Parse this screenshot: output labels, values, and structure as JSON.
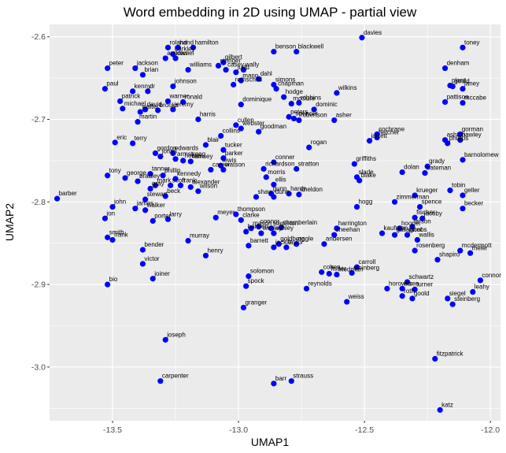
{
  "chart_data": {
    "type": "scatter",
    "title": "Word embedding in 2D using UMAP - partial view",
    "xlabel": "UMAP1",
    "ylabel": "UMAP2",
    "xlim": [
      -13.75,
      -11.96
    ],
    "ylim": [
      -3.065,
      -2.585
    ],
    "x_ticks": [
      -13.5,
      -13.0,
      -12.5,
      -12.0
    ],
    "x_tick_labels": [
      "-13.5",
      "-13.0",
      "-12.5",
      "-12.0"
    ],
    "y_ticks": [
      -2.6,
      -2.7,
      -2.8,
      -2.9,
      -3.0
    ],
    "y_tick_labels": [
      "-2.6",
      "-2.7",
      "-2.8",
      "-2.9",
      "-3.0"
    ],
    "grid": true,
    "point_color": "#0000ff",
    "panel_color": "#ebebeb",
    "grid_color": "#ffffff",
    "points": [
      {
        "label": "davies",
        "x": -12.51,
        "y": -2.601
      },
      {
        "label": "toney",
        "x": -12.11,
        "y": -2.613
      },
      {
        "label": "roland",
        "x": -13.28,
        "y": -2.613
      },
      {
        "label": "hand",
        "x": -13.24,
        "y": -2.613
      },
      {
        "label": "barkley",
        "x": -13.26,
        "y": -2.621
      },
      {
        "label": "andrew",
        "x": -13.29,
        "y": -2.626
      },
      {
        "label": "daniel",
        "x": -13.25,
        "y": -2.626
      },
      {
        "label": "hamilton",
        "x": -13.18,
        "y": -2.613
      },
      {
        "label": "benson",
        "x": -12.86,
        "y": -2.618
      },
      {
        "label": "blackwell",
        "x": -12.77,
        "y": -2.618
      },
      {
        "label": "gilbert",
        "x": -13.06,
        "y": -2.631
      },
      {
        "label": "stringer",
        "x": -13.08,
        "y": -2.635
      },
      {
        "label": "wally",
        "x": -12.98,
        "y": -2.64
      },
      {
        "label": "casey",
        "x": -13.05,
        "y": -2.64
      },
      {
        "label": "judd",
        "x": -13.01,
        "y": -2.643
      },
      {
        "label": "peter",
        "x": -13.52,
        "y": -2.638
      },
      {
        "label": "jackson",
        "x": -13.41,
        "y": -2.638
      },
      {
        "label": "brian",
        "x": -13.38,
        "y": -2.646
      },
      {
        "label": "williams",
        "x": -13.2,
        "y": -2.64
      },
      {
        "label": "denham",
        "x": -12.18,
        "y": -2.638
      },
      {
        "label": "paul",
        "x": -13.53,
        "y": -2.663
      },
      {
        "label": "johnson",
        "x": -13.26,
        "y": -2.66
      },
      {
        "label": "mann",
        "x": -12.99,
        "y": -2.653
      },
      {
        "label": "dahl",
        "x": -12.92,
        "y": -2.651
      },
      {
        "label": "simons",
        "x": -12.86,
        "y": -2.658
      },
      {
        "label": "chapman",
        "x": -12.85,
        "y": -2.663
      },
      {
        "label": "rothschild",
        "x": -13.02,
        "y": -2.658
      },
      {
        "label": "plant",
        "x": -12.16,
        "y": -2.659
      },
      {
        "label": "gould",
        "x": -12.15,
        "y": -2.66
      },
      {
        "label": "janey",
        "x": -12.11,
        "y": -2.663
      },
      {
        "label": "kenny",
        "x": -13.42,
        "y": -2.666
      },
      {
        "label": "dr",
        "x": -13.36,
        "y": -2.666
      },
      {
        "label": "wilkins",
        "x": -12.61,
        "y": -2.668
      },
      {
        "label": "hodge",
        "x": -12.82,
        "y": -2.673
      },
      {
        "label": "patrick",
        "x": -13.47,
        "y": -2.678
      },
      {
        "label": "warner",
        "x": -13.28,
        "y": -2.678
      },
      {
        "label": "ronald",
        "x": -13.22,
        "y": -2.679
      },
      {
        "label": "dominique",
        "x": -12.99,
        "y": -2.682
      },
      {
        "label": "mcclure",
        "x": -12.79,
        "y": -2.681
      },
      {
        "label": "robbins",
        "x": -12.76,
        "y": -2.68
      },
      {
        "label": "pattison",
        "x": -12.18,
        "y": -2.679
      },
      {
        "label": "mccabe",
        "x": -12.11,
        "y": -2.68
      },
      {
        "label": "michael",
        "x": -13.46,
        "y": -2.687
      },
      {
        "label": "david",
        "x": -13.37,
        "y": -2.688
      },
      {
        "label": "brooks",
        "x": -13.32,
        "y": -2.689
      },
      {
        "label": "jeremy",
        "x": -13.26,
        "y": -2.688
      },
      {
        "label": "dominic",
        "x": -12.7,
        "y": -2.688
      },
      {
        "label": "walter",
        "x": -13.39,
        "y": -2.691
      },
      {
        "label": "peters",
        "x": -12.8,
        "y": -2.697
      },
      {
        "label": "spencer",
        "x": -12.78,
        "y": -2.699
      },
      {
        "label": "robertson",
        "x": -12.76,
        "y": -2.701
      },
      {
        "label": "asher",
        "x": -12.62,
        "y": -2.701
      },
      {
        "label": "harris",
        "x": -13.16,
        "y": -2.7
      },
      {
        "label": "martin",
        "x": -13.4,
        "y": -2.703
      },
      {
        "label": "cullen",
        "x": -13.01,
        "y": -2.707
      },
      {
        "label": "webster",
        "x": -12.99,
        "y": -2.711
      },
      {
        "label": "goodman",
        "x": -12.92,
        "y": -2.715
      },
      {
        "label": "collins",
        "x": -13.07,
        "y": -2.72
      },
      {
        "label": "cochrane",
        "x": -12.45,
        "y": -2.718
      },
      {
        "label": "fletcher",
        "x": -12.45,
        "y": -2.722
      },
      {
        "label": "jarrett",
        "x": -12.48,
        "y": -2.726
      },
      {
        "label": "gorman",
        "x": -12.12,
        "y": -2.718
      },
      {
        "label": "ashton",
        "x": -12.18,
        "y": -2.725
      },
      {
        "label": "hawley",
        "x": -12.12,
        "y": -2.725
      },
      {
        "label": "phillips",
        "x": -12.17,
        "y": -2.729
      },
      {
        "label": "eric",
        "x": -13.49,
        "y": -2.728
      },
      {
        "label": "terry",
        "x": -13.42,
        "y": -2.729
      },
      {
        "label": "blair",
        "x": -13.13,
        "y": -2.731
      },
      {
        "label": "tucker",
        "x": -13.06,
        "y": -2.737
      },
      {
        "label": "rogan",
        "x": -12.72,
        "y": -2.734
      },
      {
        "label": "gordon",
        "x": -13.33,
        "y": -2.741
      },
      {
        "label": "edwards",
        "x": -13.26,
        "y": -2.741
      },
      {
        "label": "jones",
        "x": -13.31,
        "y": -2.745
      },
      {
        "label": "armstrong",
        "x": -13.25,
        "y": -2.748
      },
      {
        "label": "hobbs",
        "x": -13.22,
        "y": -2.75
      },
      {
        "label": "ramsey",
        "x": -13.19,
        "y": -2.751
      },
      {
        "label": "parker",
        "x": -13.06,
        "y": -2.747
      },
      {
        "label": "barnolomew",
        "x": -12.11,
        "y": -2.749
      },
      {
        "label": "lewis",
        "x": -13.07,
        "y": -2.756
      },
      {
        "label": "conner",
        "x": -12.86,
        "y": -2.752
      },
      {
        "label": "griffiths",
        "x": -12.54,
        "y": -2.754
      },
      {
        "label": "grady",
        "x": -12.25,
        "y": -2.757
      },
      {
        "label": "carver",
        "x": -13.11,
        "y": -2.761
      },
      {
        "label": "watson",
        "x": -13.06,
        "y": -2.761
      },
      {
        "label": "richardson",
        "x": -12.9,
        "y": -2.76
      },
      {
        "label": "stratton",
        "x": -12.77,
        "y": -2.76
      },
      {
        "label": "dolan",
        "x": -12.35,
        "y": -2.764
      },
      {
        "label": "bateman",
        "x": -12.26,
        "y": -2.765
      },
      {
        "label": "tony",
        "x": -13.52,
        "y": -2.768
      },
      {
        "label": "tanner",
        "x": -13.35,
        "y": -2.766
      },
      {
        "label": "phillip",
        "x": -13.3,
        "y": -2.768
      },
      {
        "label": "george",
        "x": -13.45,
        "y": -2.771
      },
      {
        "label": "kennedy",
        "x": -13.25,
        "y": -2.772
      },
      {
        "label": "morris",
        "x": -12.89,
        "y": -2.77
      },
      {
        "label": "slade",
        "x": -12.53,
        "y": -2.77
      },
      {
        "label": "bradley",
        "x": -13.4,
        "y": -2.775
      },
      {
        "label": "blake",
        "x": -12.52,
        "y": -2.774
      },
      {
        "label": "ellis",
        "x": -12.86,
        "y": -2.779
      },
      {
        "label": "mark",
        "x": -13.33,
        "y": -2.78
      },
      {
        "label": "scott",
        "x": -13.27,
        "y": -2.78
      },
      {
        "label": "frank",
        "x": -13.23,
        "y": -2.78
      },
      {
        "label": "alexander",
        "x": -13.19,
        "y": -2.782
      },
      {
        "label": "gray",
        "x": -13.35,
        "y": -2.784
      },
      {
        "label": "wilson",
        "x": -13.16,
        "y": -2.787
      },
      {
        "label": "tobin",
        "x": -12.16,
        "y": -2.786
      },
      {
        "label": "gunn",
        "x": -12.87,
        "y": -2.79
      },
      {
        "label": "hardy",
        "x": -12.8,
        "y": -2.79
      },
      {
        "label": "sheldon",
        "x": -12.76,
        "y": -2.791
      },
      {
        "label": "beck",
        "x": -13.29,
        "y": -2.793
      },
      {
        "label": "shaw",
        "x": -12.93,
        "y": -2.794
      },
      {
        "label": "dunn",
        "x": -12.86,
        "y": -2.794
      },
      {
        "label": "krueger",
        "x": -12.3,
        "y": -2.792
      },
      {
        "label": "geller",
        "x": -12.11,
        "y": -2.792
      },
      {
        "label": "barber",
        "x": -13.72,
        "y": -2.796
      },
      {
        "label": "stewart",
        "x": -13.37,
        "y": -2.797
      },
      {
        "label": "zimmerman",
        "x": -12.38,
        "y": -2.8
      },
      {
        "label": "john",
        "x": -13.5,
        "y": -2.806
      },
      {
        "label": "hogg",
        "x": -12.53,
        "y": -2.806
      },
      {
        "label": "spence",
        "x": -12.28,
        "y": -2.806
      },
      {
        "label": "james",
        "x": -13.41,
        "y": -2.808
      },
      {
        "label": "walker",
        "x": -13.37,
        "y": -2.81
      },
      {
        "label": "becker",
        "x": -12.11,
        "y": -2.808
      },
      {
        "label": "thompson",
        "x": -13.01,
        "y": -2.815
      },
      {
        "label": "meyer",
        "x": -13.09,
        "y": -2.819
      },
      {
        "label": "clarke",
        "x": -12.99,
        "y": -2.822
      },
      {
        "label": "jon",
        "x": -13.53,
        "y": -2.82
      },
      {
        "label": "larry",
        "x": -13.28,
        "y": -2.821
      },
      {
        "label": "fischer",
        "x": -12.3,
        "y": -2.819
      },
      {
        "label": "jacoby",
        "x": -12.27,
        "y": -2.82
      },
      {
        "label": "porter",
        "x": -13.34,
        "y": -2.823
      },
      {
        "label": "harrington",
        "x": -12.61,
        "y": -2.832
      },
      {
        "label": "hooper",
        "x": -12.36,
        "y": -2.832
      },
      {
        "label": "larson",
        "x": -12.31,
        "y": -2.83
      },
      {
        "label": "mason",
        "x": -12.95,
        "y": -2.832
      },
      {
        "label": "connor",
        "x": -12.92,
        "y": -2.83
      },
      {
        "label": "stapleton",
        "x": -12.87,
        "y": -2.832
      },
      {
        "label": "chamberlain",
        "x": -12.83,
        "y": -2.831
      },
      {
        "label": "hansen",
        "x": -12.97,
        "y": -2.836
      },
      {
        "label": "wesley",
        "x": -12.91,
        "y": -2.838
      },
      {
        "label": "ashley",
        "x": -12.86,
        "y": -2.838
      },
      {
        "label": "sheehan",
        "x": -12.62,
        "y": -2.84
      },
      {
        "label": "kaufman",
        "x": -12.43,
        "y": -2.838
      },
      {
        "label": "gallagher",
        "x": -12.38,
        "y": -2.84
      },
      {
        "label": "jacobs",
        "x": -12.33,
        "y": -2.84
      },
      {
        "label": "smith",
        "x": -13.52,
        "y": -2.843
      },
      {
        "label": "murray",
        "x": -13.2,
        "y": -2.847
      },
      {
        "label": "frank2",
        "x": -13.5,
        "y": -2.846
      },
      {
        "label": "wallis",
        "x": -12.29,
        "y": -2.846
      },
      {
        "label": "goldberg",
        "x": -12.84,
        "y": -2.851
      },
      {
        "label": "nagle",
        "x": -12.77,
        "y": -2.851
      },
      {
        "label": "andersen",
        "x": -12.66,
        "y": -2.851
      },
      {
        "label": "barrett",
        "x": -12.96,
        "y": -2.853
      },
      {
        "label": "jackie",
        "x": -12.86,
        "y": -2.855
      },
      {
        "label": "taylor",
        "x": -12.81,
        "y": -2.855
      },
      {
        "label": "bender",
        "x": -13.38,
        "y": -2.858
      },
      {
        "label": "rosenberg",
        "x": -12.3,
        "y": -2.859
      },
      {
        "label": "mcdermott",
        "x": -12.12,
        "y": -2.859
      },
      {
        "label": "meier",
        "x": -12.08,
        "y": -2.862
      },
      {
        "label": "henry",
        "x": -13.13,
        "y": -2.865
      },
      {
        "label": "shapiro",
        "x": -12.21,
        "y": -2.87
      },
      {
        "label": "victor",
        "x": -13.38,
        "y": -2.875
      },
      {
        "label": "carroll",
        "x": -12.53,
        "y": -2.879
      },
      {
        "label": "cohen",
        "x": -12.67,
        "y": -2.885
      },
      {
        "label": "fisher",
        "x": -12.64,
        "y": -2.887
      },
      {
        "label": "friedman",
        "x": -12.61,
        "y": -2.888
      },
      {
        "label": "steinberg",
        "x": -12.55,
        "y": -2.886
      },
      {
        "label": "solomon",
        "x": -12.96,
        "y": -2.89
      },
      {
        "label": "connor2",
        "x": -12.04,
        "y": -2.895
      },
      {
        "label": "joiner",
        "x": -13.34,
        "y": -2.893
      },
      {
        "label": "schwartz",
        "x": -12.33,
        "y": -2.897
      },
      {
        "label": "bio",
        "x": -13.52,
        "y": -2.9
      },
      {
        "label": "spock",
        "x": -12.97,
        "y": -2.902
      },
      {
        "label": "reynolds",
        "x": -12.73,
        "y": -2.905
      },
      {
        "label": "horowitz",
        "x": -12.41,
        "y": -2.905
      },
      {
        "label": "eisen",
        "x": -12.35,
        "y": -2.905
      },
      {
        "label": "turner",
        "x": -12.3,
        "y": -2.906
      },
      {
        "label": "leahy",
        "x": -12.07,
        "y": -2.909
      },
      {
        "label": "roth",
        "x": -12.35,
        "y": -2.914
      },
      {
        "label": "goold",
        "x": -12.31,
        "y": -2.917
      },
      {
        "label": "siegel",
        "x": -12.17,
        "y": -2.917
      },
      {
        "label": "weiss",
        "x": -12.57,
        "y": -2.921
      },
      {
        "label": "steinberg2",
        "x": -12.15,
        "y": -2.924
      },
      {
        "label": "granger",
        "x": -12.98,
        "y": -2.928
      },
      {
        "label": "joseph",
        "x": -13.29,
        "y": -2.967
      },
      {
        "label": "fitzpatrick",
        "x": -12.22,
        "y": -2.99
      },
      {
        "label": "carpenter",
        "x": -13.31,
        "y": -3.017
      },
      {
        "label": "strauss",
        "x": -12.79,
        "y": -3.017
      },
      {
        "label": "barr",
        "x": -12.86,
        "y": -3.02
      },
      {
        "label": "katz",
        "x": -12.2,
        "y": -3.052
      }
    ],
    "display_labels": {
      "frank2": "frank",
      "connor2": "connor",
      "steinberg2": "steinberg"
    }
  }
}
